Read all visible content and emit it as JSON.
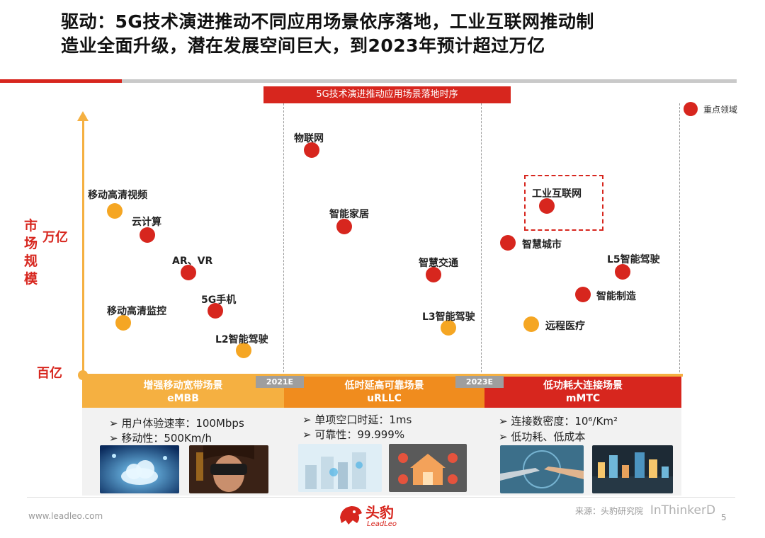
{
  "title": {
    "line1": "驱动：5G技术演进推动不同应用场景依序落地，工业互联网推动制",
    "line2": "造业全面升级，潜在发展空间巨大，到2023年预计超过万亿"
  },
  "banner": "5G技术演进推动应用场景落地时序",
  "legend": "重点领域",
  "y_axis": {
    "chars": [
      "市",
      "场",
      "规",
      "模"
    ],
    "top": "万亿",
    "bottom": "百亿"
  },
  "points": {
    "mobile_hd_video": "移动高清视频",
    "cloud": "云计算",
    "ar_vr": "AR、VR",
    "hd_monitor": "移动高清监控",
    "phone_5g": "5G手机",
    "l2": "L2智能驾驶",
    "iot": "物联网",
    "smart_home": "智能家居",
    "smart_traffic": "智慧交通",
    "l3": "L3智能驾驶",
    "iiot": "工业互联网",
    "smart_city": "智慧城市",
    "l5": "L5智能驾驶",
    "smart_mfg": "智能制造",
    "telemedicine": "远程医疗"
  },
  "dates": {
    "d1": "2021E",
    "d2": "2023E"
  },
  "segments": {
    "embb": {
      "title": "增强移动宽带场景",
      "code": "eMBB",
      "b1": "➢ 用户体验速率：100Mbps",
      "b2": "➢ 移动性：500Km/h"
    },
    "urllc": {
      "title": "低时延高可靠场景",
      "code": "uRLLC",
      "b1": "➢ 单项空口时延：1ms",
      "b2": "➢ 可靠性：99.999%"
    },
    "mmtc": {
      "title": "低功耗大连接场景",
      "code": "mMTC",
      "b1": "➢ 连接数密度：10⁶/Km²",
      "b2": "➢ 低功耗、低成本"
    }
  },
  "footer": {
    "site": "www.leadleo.com",
    "brand": "头豹",
    "brand_en": "LeadLeo",
    "source": "来源：头豹研究院",
    "watermark": "InThinkerD",
    "page": "5"
  },
  "colors": {
    "red": "#d7261e",
    "orange": "#f5a623",
    "axis": "#f5b041"
  }
}
